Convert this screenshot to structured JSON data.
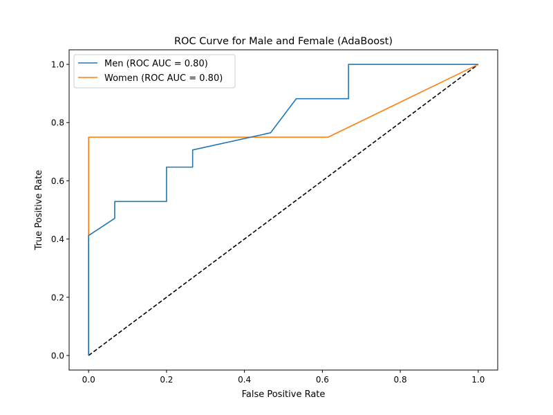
{
  "chart_data": {
    "type": "line",
    "title": "ROC Curve for Male and Female (AdaBoost)",
    "xlabel": "False Positive Rate",
    "ylabel": "True Positive Rate",
    "xlim": [
      -0.05,
      1.05
    ],
    "ylim": [
      -0.05,
      1.05
    ],
    "xticks": [
      0.0,
      0.2,
      0.4,
      0.6,
      0.8,
      1.0
    ],
    "yticks": [
      0.0,
      0.2,
      0.4,
      0.6,
      0.8,
      1.0
    ],
    "xtick_labels": [
      "0.0",
      "0.2",
      "0.4",
      "0.6",
      "0.8",
      "1.0"
    ],
    "ytick_labels": [
      "0.0",
      "0.2",
      "0.4",
      "0.6",
      "0.8",
      "1.0"
    ],
    "grid": false,
    "legend_position": "top-left",
    "series": [
      {
        "name": "Men (ROC AUC = 0.80)",
        "color": "#1f77b4",
        "line_style": "solid",
        "x": [
          0.0,
          0.0,
          0.067,
          0.067,
          0.2,
          0.2,
          0.267,
          0.267,
          0.467,
          0.533,
          0.667,
          0.667,
          1.0
        ],
        "y": [
          0.0,
          0.412,
          0.471,
          0.529,
          0.529,
          0.647,
          0.647,
          0.706,
          0.765,
          0.882,
          0.882,
          1.0,
          1.0
        ]
      },
      {
        "name": "Women (ROC AUC = 0.80)",
        "color": "#ff7f0e",
        "line_style": "solid",
        "x": [
          0.0,
          0.0,
          0.615,
          1.0
        ],
        "y": [
          0.0,
          0.75,
          0.75,
          1.0
        ]
      },
      {
        "color": "#000000",
        "line_style": "dashed",
        "x": [
          0.0,
          1.0
        ],
        "y": [
          0.0,
          1.0
        ]
      }
    ]
  }
}
